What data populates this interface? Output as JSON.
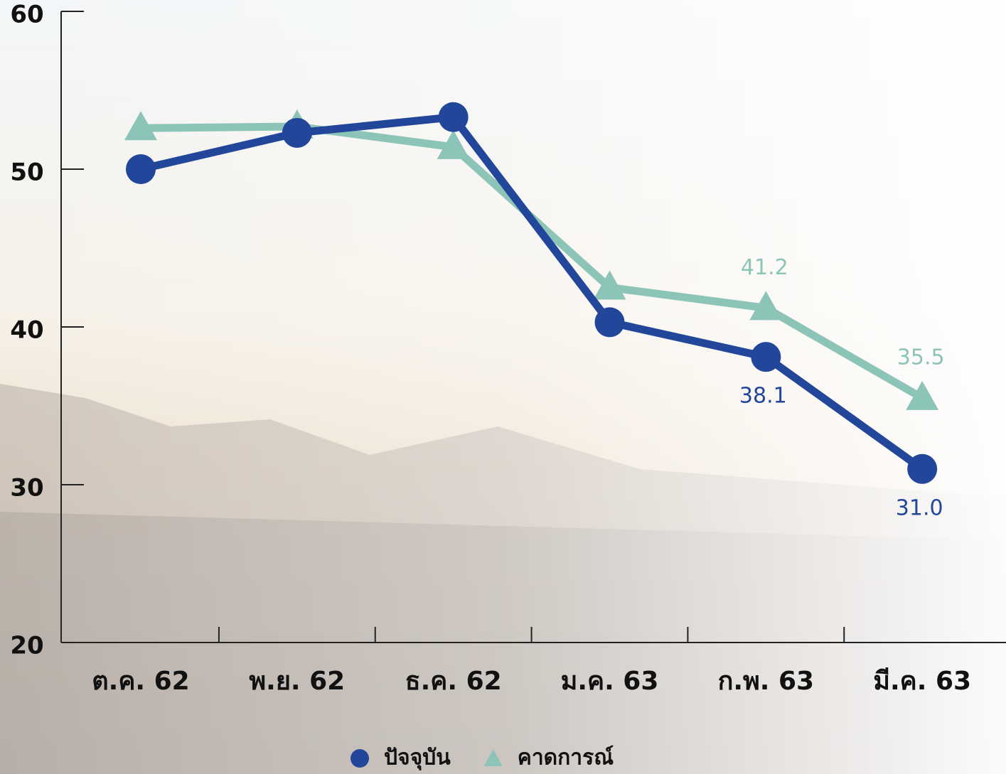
{
  "chart_data": {
    "type": "line",
    "categories": [
      "ต.ค. 62",
      "พ.ย. 62",
      "ธ.ค. 62",
      "ม.ค. 63",
      "ก.พ. 63",
      "มี.ค. 63"
    ],
    "series": [
      {
        "name": "ปัจจุบัน",
        "color": "#22479a",
        "marker": "circle",
        "values": [
          50.0,
          52.3,
          53.3,
          40.3,
          38.1,
          31.0
        ],
        "value_labels": [
          null,
          null,
          null,
          null,
          "38.1",
          "31.0"
        ],
        "label_position": "below"
      },
      {
        "name": "คาดการณ์",
        "color": "#8cc4b8",
        "marker": "triangle",
        "values": [
          52.6,
          52.7,
          51.4,
          42.5,
          41.2,
          35.5
        ],
        "value_labels": [
          null,
          null,
          null,
          null,
          "41.2",
          "35.5"
        ],
        "label_position": "above"
      }
    ],
    "ylim": [
      20,
      60
    ],
    "yticks": [
      20,
      30,
      40,
      50,
      60
    ],
    "grid": false,
    "legend": "bottom"
  }
}
